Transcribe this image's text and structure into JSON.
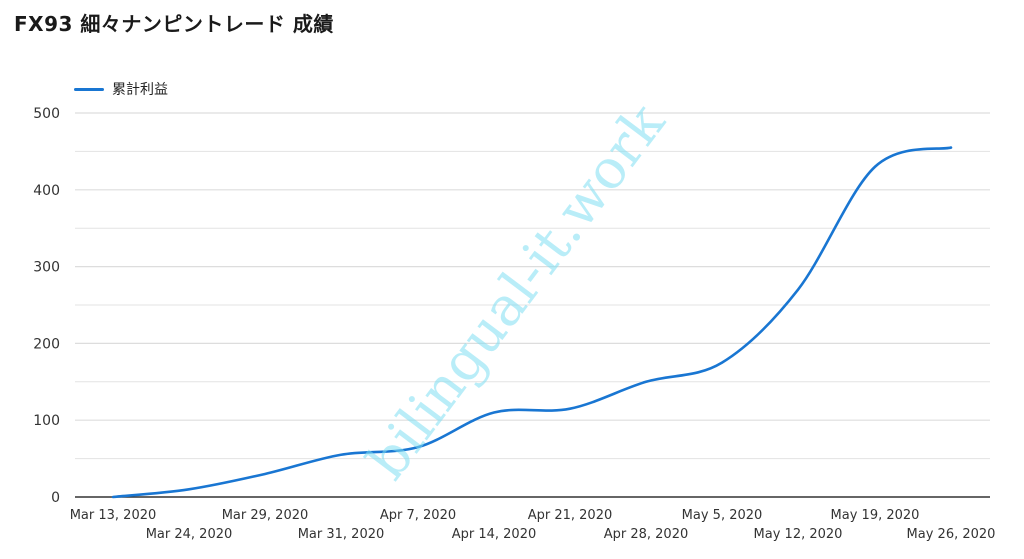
{
  "title": "FX93 細々ナンピントレード 成績",
  "watermark": "bilingual-it.work",
  "colors": {
    "series": "#1976d2",
    "grid": "#dddddd",
    "axis": "#333333",
    "watermark": "#80def2"
  },
  "chart_data": {
    "type": "line",
    "title": "FX93 細々ナンピントレード 成績",
    "xlabel": "",
    "ylabel": "",
    "ylim": [
      0,
      500
    ],
    "yticks": [
      0,
      100,
      200,
      300,
      400,
      500
    ],
    "grid": true,
    "legend_position": "top-left",
    "x": [
      "Mar 13, 2020",
      "Mar 24, 2020",
      "Mar 29, 2020",
      "Mar 31, 2020",
      "Apr 7, 2020",
      "Apr 14, 2020",
      "Apr 21, 2020",
      "Apr 28, 2020",
      "May 5, 2020",
      "May 12, 2020",
      "May 19, 2020",
      "May 26, 2020"
    ],
    "series": [
      {
        "name": "累計利益",
        "values": [
          0,
          10,
          30,
          55,
          65,
          110,
          115,
          150,
          175,
          270,
          430,
          455
        ]
      }
    ]
  }
}
